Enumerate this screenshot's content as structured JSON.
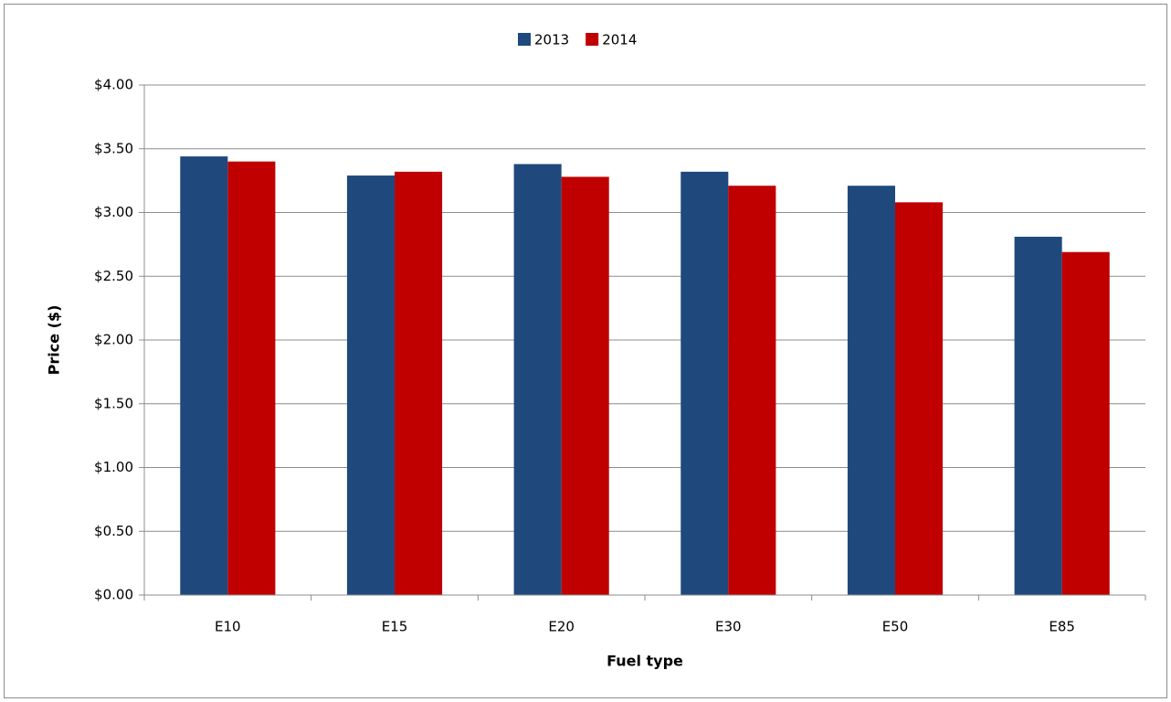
{
  "chart_data": {
    "type": "bar",
    "categories": [
      "E10",
      "E15",
      "E20",
      "E30",
      "E50",
      "E85"
    ],
    "series": [
      {
        "name": "2013",
        "color": "#1f497d",
        "values": [
          3.44,
          3.29,
          3.38,
          3.32,
          3.21,
          2.81
        ]
      },
      {
        "name": "2014",
        "color": "#c00000",
        "values": [
          3.4,
          3.32,
          3.28,
          3.21,
          3.08,
          2.69
        ]
      }
    ],
    "x_label": "Fuel type",
    "y_label": "Price ($)",
    "ylim": [
      0,
      4
    ],
    "yticks": [
      {
        "value": 0,
        "label": "$0.00"
      },
      {
        "value": 0.5,
        "label": "$0.50"
      },
      {
        "value": 1,
        "label": "$1.00"
      },
      {
        "value": 1.5,
        "label": "$1.50"
      },
      {
        "value": 2,
        "label": "$2.00"
      },
      {
        "value": 2.5,
        "label": "$2.50"
      },
      {
        "value": 3,
        "label": "$3.00"
      },
      {
        "value": 3.5,
        "label": "$3.50"
      },
      {
        "value": 4,
        "label": "$4.00"
      }
    ],
    "grid": true,
    "legend": "top"
  }
}
